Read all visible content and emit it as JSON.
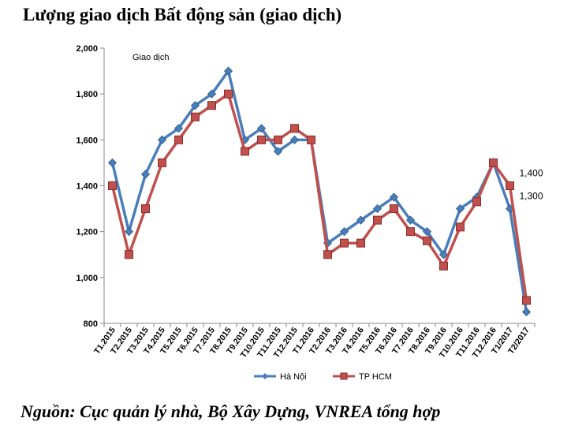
{
  "title": "Lượng giao dịch Bất động sản (giao dịch)",
  "source": "Nguồn: Cục quản lý nhà, Bộ Xây Dựng, VNREA tổng hợp",
  "chart_data": {
    "type": "line",
    "ylabel": "Giao dịch",
    "xlabel": "",
    "ylim": [
      800,
      2000
    ],
    "yticks": [
      800,
      1000,
      1200,
      1400,
      1600,
      1800,
      2000
    ],
    "grid": false,
    "legend_position": "bottom",
    "categories": [
      "T1.2015",
      "T2.2015",
      "T3.2015",
      "T4.2015",
      "T5.2015",
      "T6.2015",
      "T7.2015",
      "T8.2015",
      "T9.2015",
      "T10.2015",
      "T11.2015",
      "T12.2015",
      "T1.2016",
      "T2.2016",
      "T3.2016",
      "T4.2016",
      "T5.2016",
      "T6.2016",
      "T7.2016",
      "T8.2016",
      "T9.2016",
      "T10.2016",
      "T11.2016",
      "T12.2016",
      "T1/2017",
      "T2/2017"
    ],
    "series": [
      {
        "name": "Hà Nội",
        "color": "#4a7ebb",
        "marker": "diamond",
        "values": [
          1500,
          1200,
          1450,
          1600,
          1650,
          1750,
          1800,
          1900,
          1600,
          1650,
          1550,
          1600,
          1600,
          1150,
          1200,
          1250,
          1300,
          1350,
          1250,
          1200,
          1100,
          1300,
          1350,
          1500,
          1300,
          850
        ]
      },
      {
        "name": "TP HCM",
        "color": "#c0504d",
        "marker": "square",
        "values": [
          1400,
          1100,
          1300,
          1500,
          1600,
          1700,
          1750,
          1800,
          1550,
          1600,
          1600,
          1650,
          1600,
          1100,
          1150,
          1150,
          1250,
          1300,
          1200,
          1160,
          1050,
          1220,
          1330,
          1500,
          1400,
          900
        ]
      }
    ],
    "annotations": [
      {
        "text": "1,400",
        "series": "TP HCM",
        "category": "T1/2017"
      },
      {
        "text": "1,300",
        "series": "Hà Nội",
        "category": "T1/2017"
      }
    ]
  }
}
